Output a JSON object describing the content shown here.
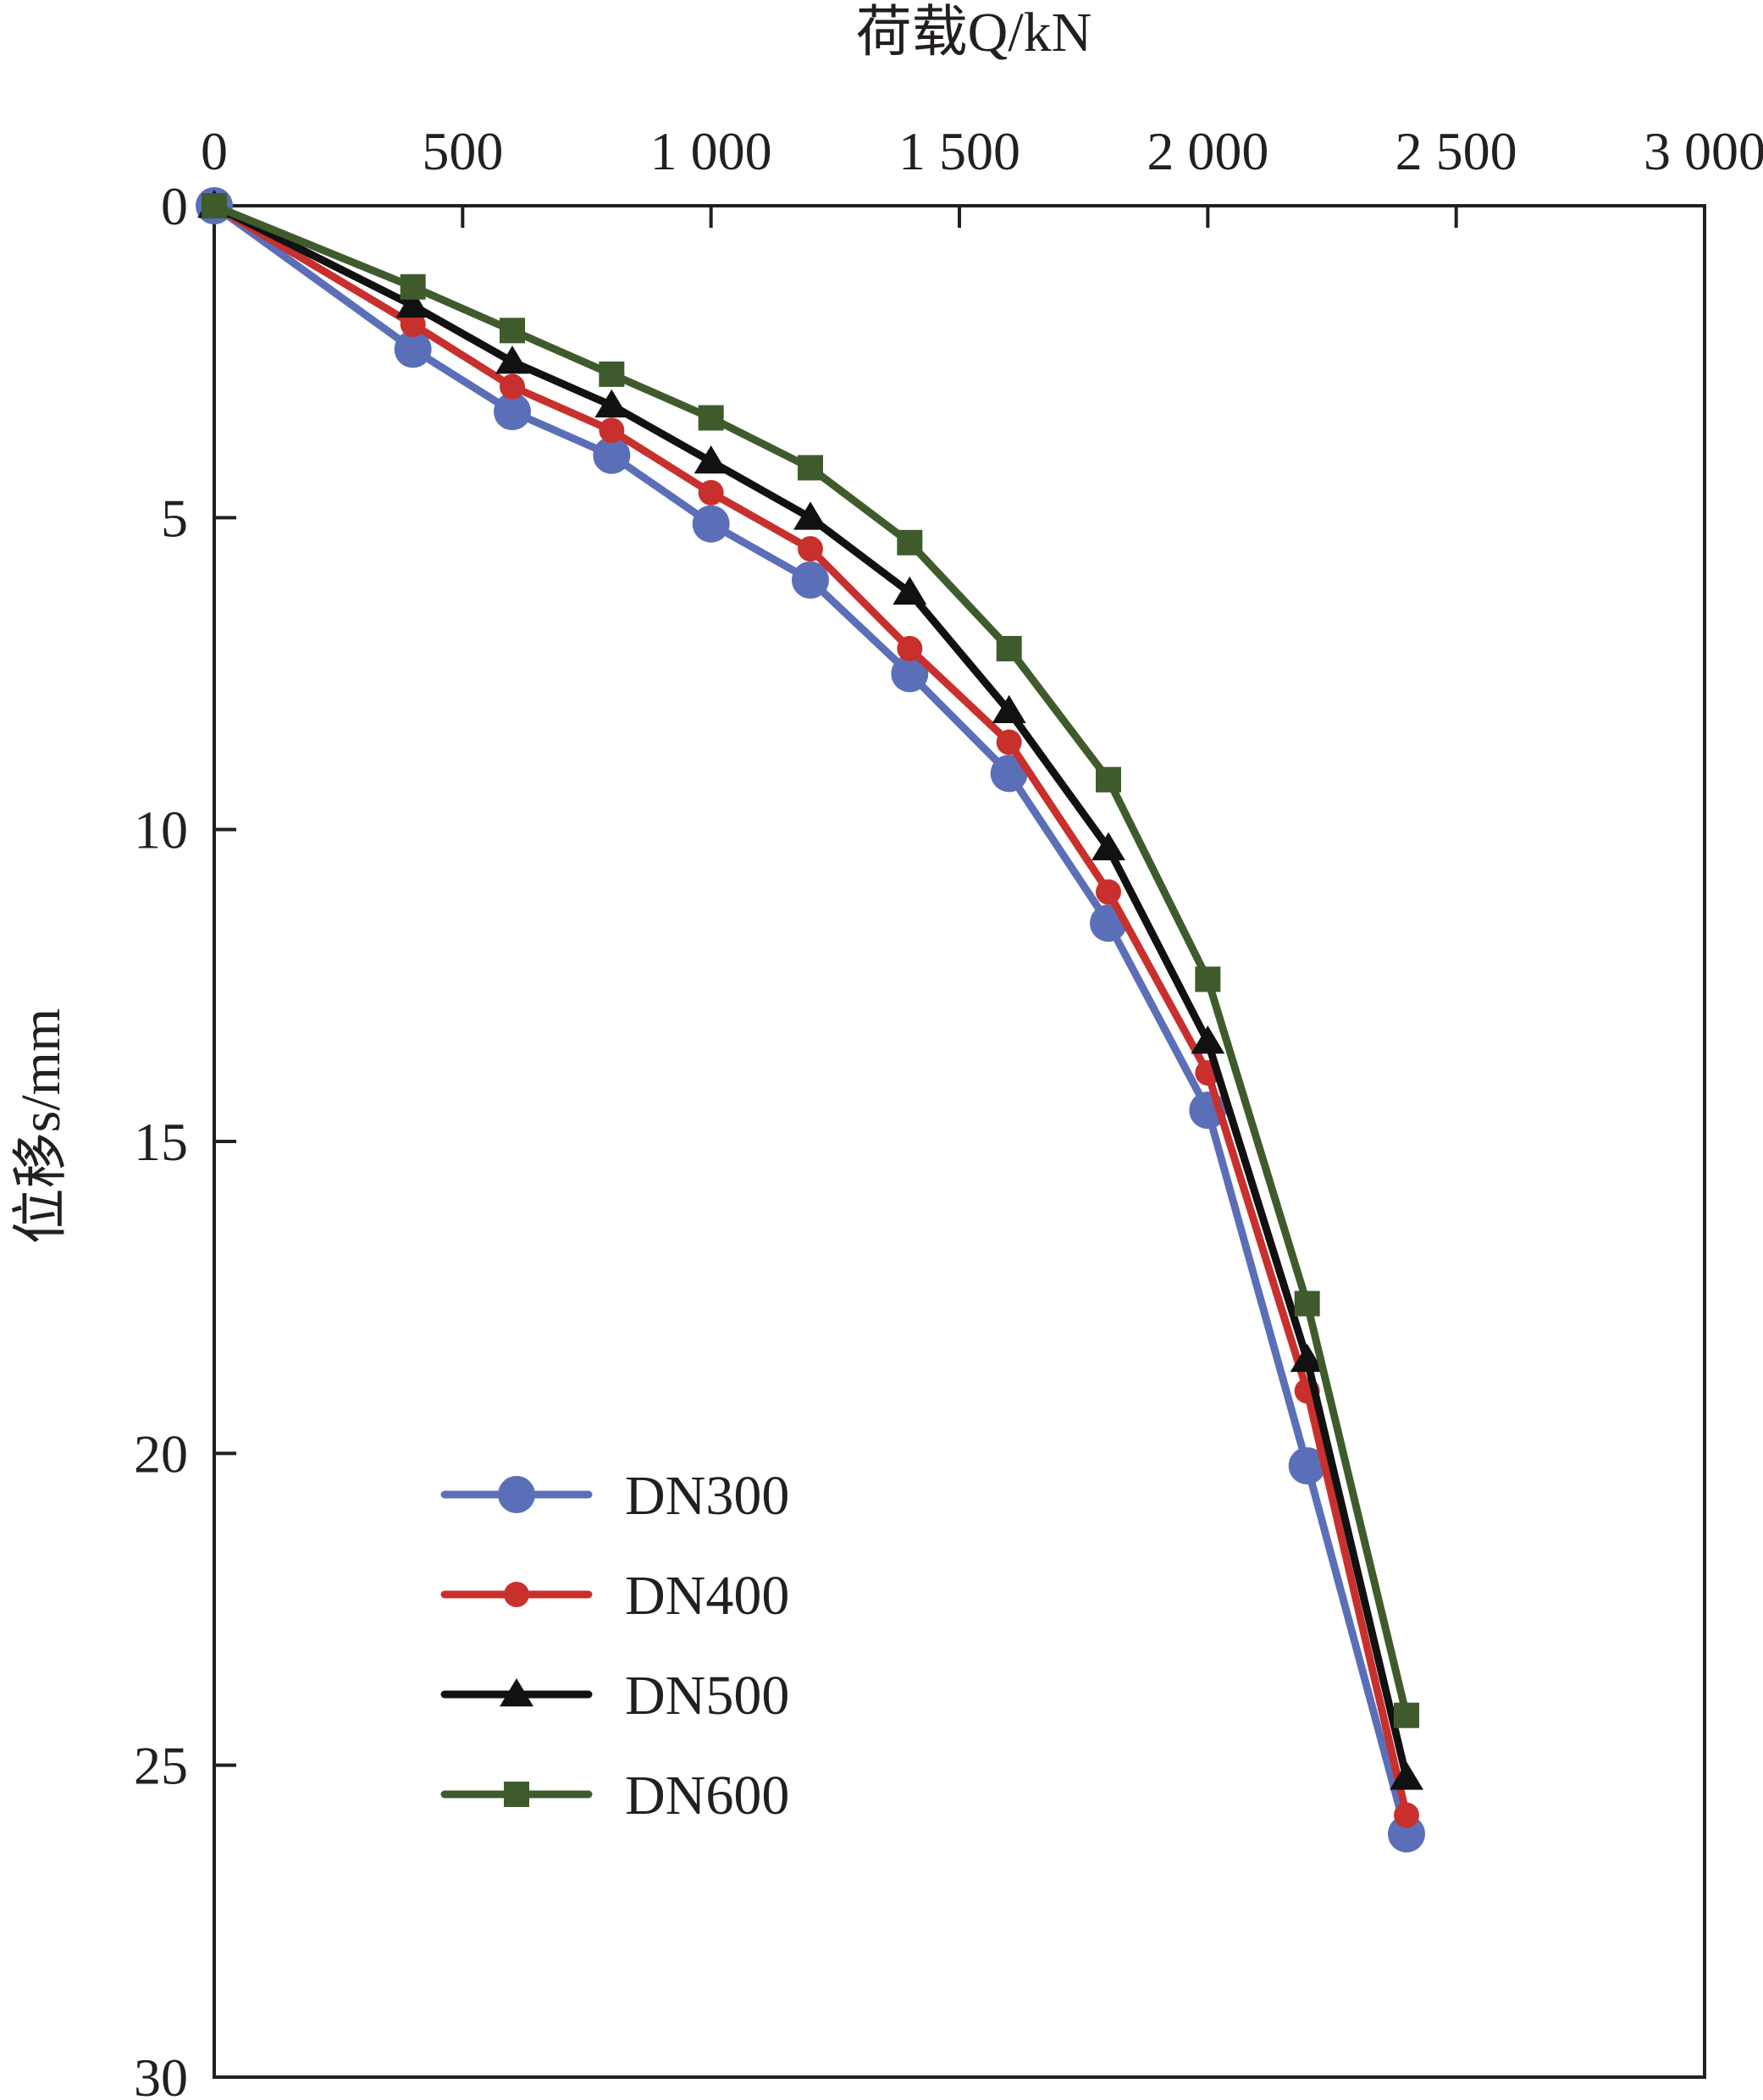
{
  "chart_data": {
    "type": "line",
    "xlabel": "荷载Q/kN",
    "ylabel": "位移s/mm",
    "xlim": [
      0,
      3000
    ],
    "ylim": [
      0,
      30
    ],
    "y_inverted": true,
    "x_ticks": [
      0,
      500,
      1000,
      1500,
      2000,
      2500,
      3000
    ],
    "x_tick_labels": [
      "0",
      "500",
      "1 000",
      "1 500",
      "2 000",
      "2 500",
      "3 000"
    ],
    "y_ticks": [
      0,
      5,
      10,
      15,
      20,
      25,
      30
    ],
    "y_tick_labels": [
      "0",
      "5",
      "10",
      "15",
      "20",
      "25",
      "30"
    ],
    "x": [
      0,
      400,
      600,
      800,
      1000,
      1200,
      1400,
      1600,
      1800,
      2000,
      2200,
      2400
    ],
    "legend_position": "lower-left",
    "series": [
      {
        "name": "DN300",
        "marker": "circle",
        "color": "#5b6fb8",
        "values": [
          0,
          2.3,
          3.3,
          4.0,
          5.1,
          6.0,
          7.5,
          9.1,
          11.5,
          14.5,
          20.2,
          26.1
        ]
      },
      {
        "name": "DN400",
        "marker": "circle-small",
        "color": "#c8302e",
        "values": [
          0,
          1.9,
          2.9,
          3.6,
          4.6,
          5.5,
          7.1,
          8.6,
          11.0,
          13.9,
          19.0,
          25.8
        ]
      },
      {
        "name": "DN500",
        "marker": "triangle",
        "color": "#111111",
        "values": [
          0,
          1.6,
          2.5,
          3.2,
          4.1,
          5.0,
          6.2,
          8.1,
          10.3,
          13.4,
          18.5,
          25.2
        ]
      },
      {
        "name": "DN600",
        "marker": "square",
        "color": "#3f5b2c",
        "values": [
          0,
          1.3,
          2.0,
          2.7,
          3.4,
          4.2,
          5.4,
          7.1,
          9.2,
          12.4,
          17.6,
          24.2
        ]
      }
    ]
  }
}
